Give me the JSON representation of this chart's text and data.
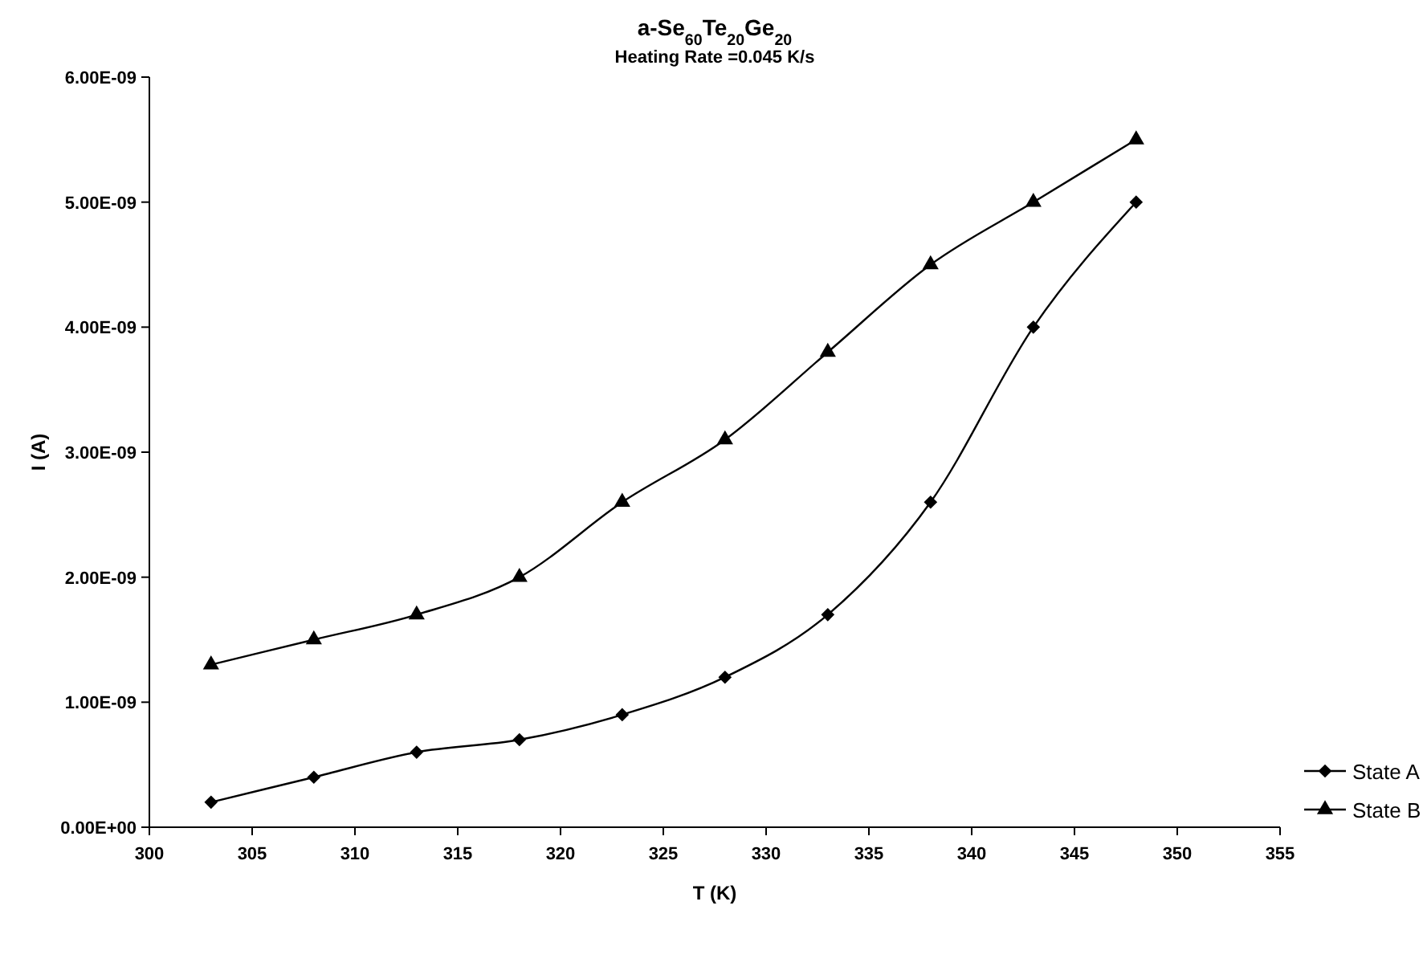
{
  "chart_data": {
    "type": "line",
    "title": "a-Se$_{60}$Te$_{20}$Ge$_{20}$",
    "subtitle": "Heating Rate =0.045 K/s",
    "xlabel": "T  (K)",
    "ylabel": "I (A)",
    "x": [
      303,
      308,
      313,
      318,
      323,
      328,
      333,
      338,
      343,
      348
    ],
    "series": [
      {
        "name": "State A",
        "color": "#000000",
        "marker": "diamond",
        "values": [
          2e-10,
          4e-10,
          6e-10,
          7e-10,
          9e-10,
          1.2e-09,
          1.7e-09,
          2.6e-09,
          4e-09,
          5e-09
        ]
      },
      {
        "name": "State B",
        "color": "#000000",
        "marker": "triangle",
        "values": [
          1.3e-09,
          1.5e-09,
          1.7e-09,
          2e-09,
          2.6e-09,
          3.1e-09,
          3.8e-09,
          4.5e-09,
          5e-09,
          5.5e-09
        ]
      }
    ],
    "xlim": [
      300,
      355
    ],
    "xticks": [
      300,
      305,
      310,
      315,
      320,
      325,
      330,
      335,
      340,
      345,
      350,
      355
    ],
    "ylim": [
      0,
      6e-09
    ],
    "yticks": [
      {
        "value": 0,
        "label": "0.00E+00"
      },
      {
        "value": 1e-09,
        "label": "1.00E-09"
      },
      {
        "value": 2e-09,
        "label": "2.00E-09"
      },
      {
        "value": 3e-09,
        "label": "3.00E-09"
      },
      {
        "value": 4e-09,
        "label": "4.00E-09"
      },
      {
        "value": 5e-09,
        "label": "5.00E-09"
      },
      {
        "value": 6e-09,
        "label": "6.00E-09"
      }
    ],
    "grid": false,
    "legend": "right",
    "line_style": "solid"
  }
}
